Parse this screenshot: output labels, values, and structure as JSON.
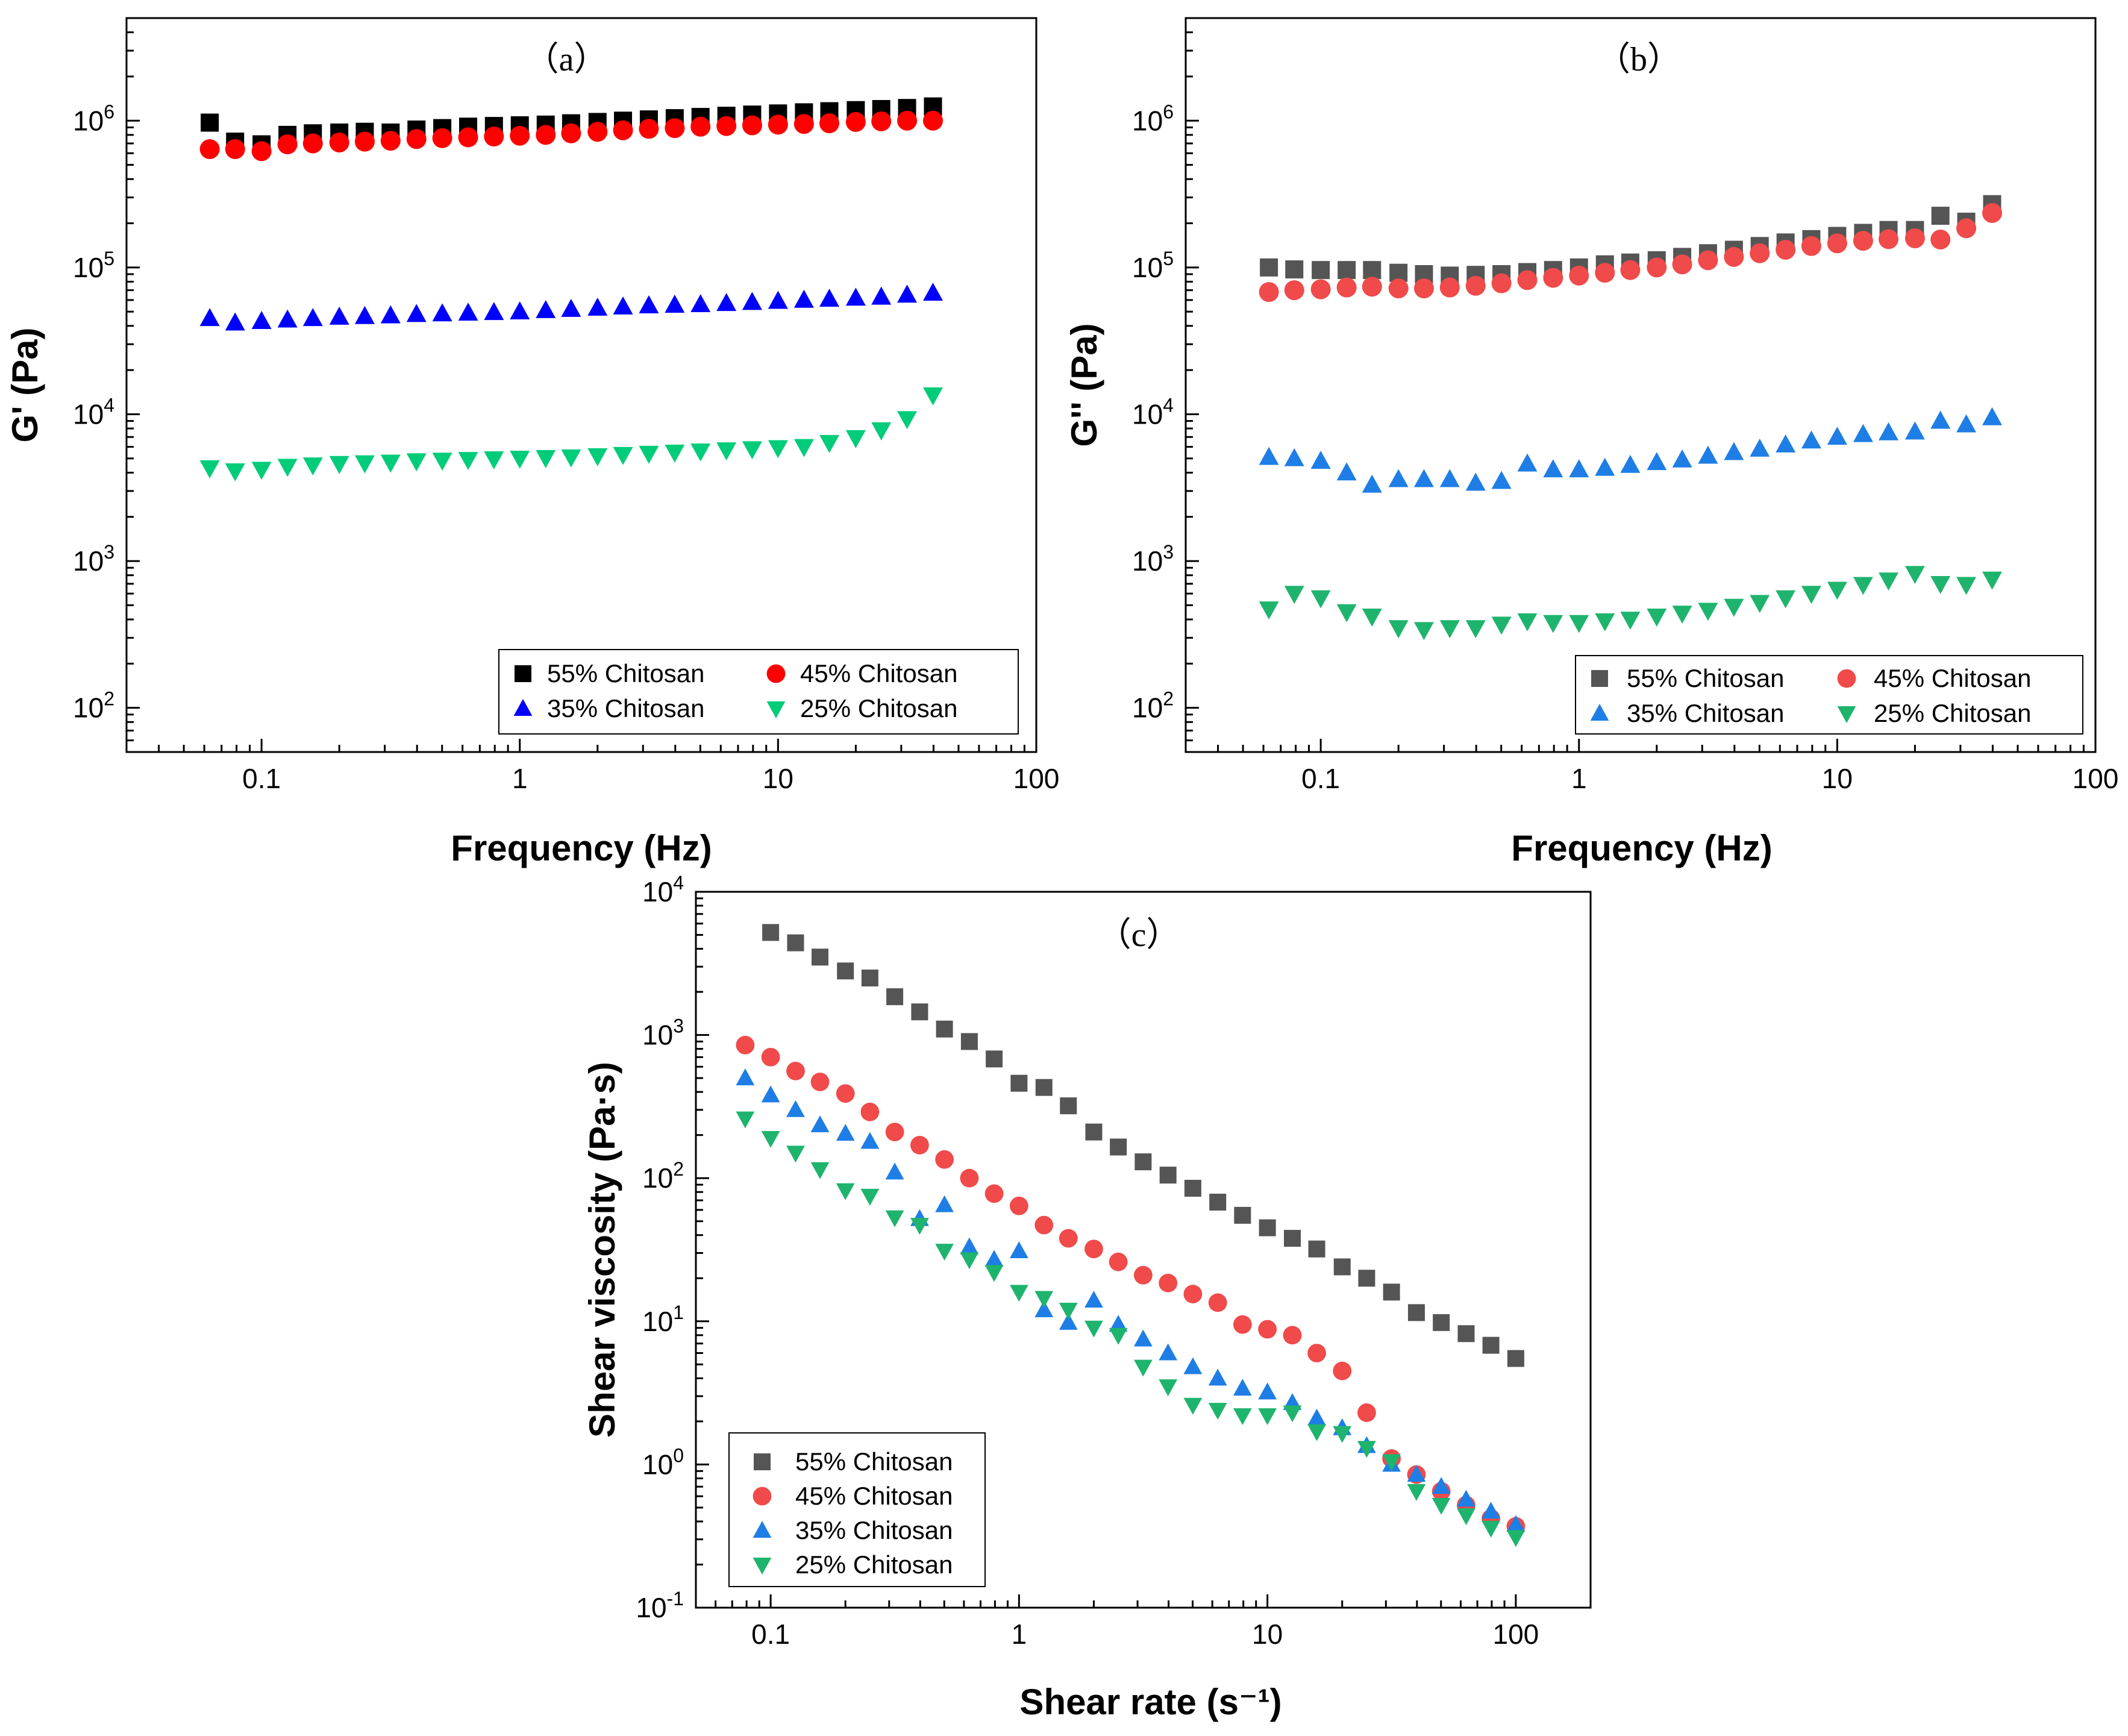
{
  "colors": {
    "s55_a": "#000000",
    "s45_a": "#ff0000",
    "s35_a": "#0000ff",
    "s25_a": "#00cc7a",
    "s55": "#555555",
    "s45": "#f04a4a",
    "s35": "#1e7ee6",
    "s25": "#1fb46e"
  },
  "chart_data": [
    {
      "id": "a",
      "type": "scatter",
      "title": "（a）",
      "xlabel": "Frequency (Hz)",
      "ylabel": "G' (Pa)",
      "xscale": "log",
      "yscale": "log",
      "xlim": [
        0.03,
        100
      ],
      "ylim": [
        50,
        5000000
      ],
      "xticks": [
        {
          "v": 0.1,
          "label": "0.1"
        },
        {
          "v": 1,
          "label": "1"
        },
        {
          "v": 10,
          "label": "10"
        },
        {
          "v": 100,
          "label": "100"
        }
      ],
      "yticks": [
        {
          "v": 100,
          "base": "10",
          "exp": "2"
        },
        {
          "v": 1000,
          "base": "10",
          "exp": "3"
        },
        {
          "v": 10000,
          "base": "10",
          "exp": "4"
        },
        {
          "v": 100000,
          "base": "10",
          "exp": "5"
        },
        {
          "v": 1000000,
          "base": "10",
          "exp": "6"
        }
      ],
      "legend": {
        "position": "bottom-right",
        "columns": 2
      },
      "x": [
        0.063,
        0.079,
        0.1,
        0.126,
        0.158,
        0.2,
        0.251,
        0.316,
        0.398,
        0.501,
        0.631,
        0.794,
        1,
        1.26,
        1.58,
        2,
        2.51,
        3.16,
        3.98,
        5.01,
        6.31,
        7.94,
        10,
        12.6,
        15.8,
        20,
        25.1,
        31.6,
        39.8
      ],
      "series": [
        {
          "name": "55% Chitosan",
          "marker": "square",
          "color_key": "s55_a",
          "values": [
            970000,
            720000,
            690000,
            800000,
            820000,
            830000,
            840000,
            830000,
            870000,
            890000,
            910000,
            920000,
            930000,
            940000,
            960000,
            980000,
            1000000,
            1020000,
            1040000,
            1060000,
            1080000,
            1100000,
            1120000,
            1140000,
            1160000,
            1180000,
            1200000,
            1220000,
            1250000
          ]
        },
        {
          "name": "45% Chitosan",
          "marker": "circle",
          "color_key": "s45_a",
          "values": [
            640000,
            640000,
            620000,
            690000,
            700000,
            710000,
            720000,
            730000,
            750000,
            760000,
            770000,
            780000,
            790000,
            800000,
            820000,
            840000,
            860000,
            880000,
            890000,
            910000,
            920000,
            930000,
            940000,
            950000,
            960000,
            980000,
            990000,
            1000000,
            1000000
          ]
        },
        {
          "name": "35% Chitosan",
          "marker": "triangle-up",
          "color_key": "s35_a",
          "values": [
            45000,
            42000,
            43000,
            44000,
            45000,
            46000,
            46500,
            47000,
            48000,
            48500,
            49000,
            49500,
            50000,
            51000,
            52000,
            53000,
            54000,
            55000,
            55500,
            56000,
            57000,
            58000,
            59000,
            60000,
            61000,
            62000,
            63000,
            65000,
            67000
          ]
        },
        {
          "name": "25% Chitosan",
          "marker": "triangle-down",
          "color_key": "s25_a",
          "values": [
            4300,
            4100,
            4200,
            4400,
            4500,
            4600,
            4650,
            4700,
            4800,
            4850,
            4900,
            4950,
            5000,
            5050,
            5100,
            5200,
            5300,
            5400,
            5500,
            5600,
            5700,
            5800,
            5900,
            6000,
            6400,
            6900,
            7800,
            9300,
            13500
          ]
        }
      ]
    },
    {
      "id": "b",
      "type": "scatter",
      "title": "（b）",
      "xlabel": "Frequency (Hz)",
      "ylabel": "G'' (Pa)",
      "xscale": "log",
      "yscale": "log",
      "xlim": [
        0.03,
        100
      ],
      "ylim": [
        50,
        5000000
      ],
      "xticks": [
        {
          "v": 0.1,
          "label": "0.1"
        },
        {
          "v": 1,
          "label": "1"
        },
        {
          "v": 10,
          "label": "10"
        },
        {
          "v": 100,
          "label": "100"
        }
      ],
      "yticks": [
        {
          "v": 100,
          "base": "10",
          "exp": "2"
        },
        {
          "v": 1000,
          "base": "10",
          "exp": "3"
        },
        {
          "v": 10000,
          "base": "10",
          "exp": "4"
        },
        {
          "v": 100000,
          "base": "10",
          "exp": "5"
        },
        {
          "v": 1000000,
          "base": "10",
          "exp": "6"
        }
      ],
      "legend": {
        "position": "bottom-right",
        "columns": 2
      },
      "x": [
        0.063,
        0.079,
        0.1,
        0.126,
        0.158,
        0.2,
        0.251,
        0.316,
        0.398,
        0.501,
        0.631,
        0.794,
        1,
        1.26,
        1.58,
        2,
        2.51,
        3.16,
        3.98,
        5.01,
        6.31,
        7.94,
        10,
        12.6,
        15.8,
        20,
        25.1,
        31.6,
        39.8
      ],
      "series": [
        {
          "name": "55% Chitosan",
          "marker": "square",
          "color_key": "s55",
          "values": [
            100000,
            97000,
            96000,
            96000,
            96000,
            92000,
            90000,
            88000,
            89000,
            90000,
            93000,
            96000,
            100000,
            105000,
            108000,
            112000,
            118000,
            125000,
            132000,
            140000,
            148000,
            156000,
            164000,
            172000,
            180000,
            180000,
            225000,
            205000,
            270000
          ]
        },
        {
          "name": "45% Chitosan",
          "marker": "circle",
          "color_key": "s45",
          "values": [
            68000,
            70000,
            71000,
            73000,
            74000,
            72000,
            72000,
            73000,
            75000,
            78000,
            82000,
            85000,
            88000,
            92000,
            96000,
            100000,
            105000,
            112000,
            118000,
            125000,
            132000,
            140000,
            146000,
            152000,
            156000,
            158000,
            155000,
            185000,
            235000
          ]
        },
        {
          "name": "35% Chitosan",
          "marker": "triangle-up",
          "color_key": "s35",
          "values": [
            5100,
            5000,
            4800,
            4000,
            3300,
            3600,
            3600,
            3600,
            3400,
            3500,
            4600,
            4200,
            4200,
            4300,
            4500,
            4700,
            4900,
            5200,
            5500,
            5800,
            6200,
            6600,
            7000,
            7300,
            7500,
            7600,
            9000,
            8500,
            9500
          ]
        },
        {
          "name": "25% Chitosan",
          "marker": "triangle-down",
          "color_key": "s25",
          "values": [
            470,
            600,
            560,
            450,
            420,
            350,
            340,
            350,
            350,
            370,
            390,
            380,
            380,
            390,
            400,
            420,
            440,
            460,
            490,
            520,
            560,
            600,
            640,
            690,
            740,
            820,
            700,
            690,
            750
          ]
        }
      ]
    },
    {
      "id": "c",
      "type": "scatter",
      "title": "（c）",
      "xlabel": "Shear rate (s⁻¹)",
      "ylabel": "Shear viscosity (Pa·s)",
      "xscale": "log",
      "yscale": "log",
      "xlim": [
        0.05,
        200
      ],
      "ylim": [
        0.1,
        10000
      ],
      "xticks": [
        {
          "v": 0.1,
          "label": "0.1"
        },
        {
          "v": 1,
          "label": "1"
        },
        {
          "v": 10,
          "label": "10"
        },
        {
          "v": 100,
          "label": "100"
        }
      ],
      "yticks": [
        {
          "v": 0.1,
          "base": "10",
          "exp": "-1"
        },
        {
          "v": 1,
          "base": "10",
          "exp": "0"
        },
        {
          "v": 10,
          "base": "10",
          "exp": "1"
        },
        {
          "v": 100,
          "base": "10",
          "exp": "2"
        },
        {
          "v": 1000,
          "base": "10",
          "exp": "3"
        },
        {
          "v": 10000,
          "base": "10",
          "exp": "4"
        }
      ],
      "legend": {
        "position": "bottom-left",
        "columns": 1
      },
      "series": [
        {
          "name": "55% Chitosan",
          "marker": "square",
          "color_key": "s55",
          "x": [
            0.1,
            0.126,
            0.158,
            0.2,
            0.251,
            0.316,
            0.398,
            0.501,
            0.631,
            0.794,
            1,
            1.26,
            1.58,
            2,
            2.51,
            3.16,
            3.98,
            5.01,
            6.31,
            7.94,
            10,
            12.6,
            15.8,
            20,
            25.1,
            31.6,
            39.8,
            50.1,
            63.1,
            79.4,
            100
          ],
          "values": [
            5200,
            4400,
            3500,
            2800,
            2500,
            1850,
            1450,
            1100,
            900,
            680,
            460,
            430,
            320,
            210,
            165,
            130,
            105,
            85,
            68,
            55,
            45,
            38,
            32,
            24,
            20,
            16,
            11.5,
            9.8,
            8.2,
            6.8,
            5.5
          ]
        },
        {
          "name": "45% Chitosan",
          "marker": "circle",
          "color_key": "s45",
          "x": [
            0.079,
            0.1,
            0.126,
            0.158,
            0.2,
            0.251,
            0.316,
            0.398,
            0.501,
            0.631,
            0.794,
            1,
            1.26,
            1.58,
            2,
            2.51,
            3.16,
            3.98,
            5.01,
            6.31,
            7.94,
            10,
            12.6,
            15.8,
            20,
            25.1,
            31.6,
            39.8,
            50.1,
            63.1,
            79.4,
            100
          ],
          "values": [
            850,
            700,
            560,
            470,
            390,
            290,
            210,
            170,
            135,
            100,
            78,
            64,
            47,
            38,
            32,
            26,
            21,
            18.5,
            15.5,
            13.5,
            9.5,
            8.8,
            8,
            6,
            4.5,
            2.3,
            1.1,
            0.85,
            0.65,
            0.52,
            0.42,
            0.37
          ]
        },
        {
          "name": "35% Chitosan",
          "marker": "triangle-up",
          "color_key": "s35",
          "x": [
            0.079,
            0.1,
            0.126,
            0.158,
            0.2,
            0.251,
            0.316,
            0.398,
            0.501,
            0.631,
            0.794,
            1,
            1.26,
            1.58,
            2,
            2.51,
            3.16,
            3.98,
            5.01,
            6.31,
            7.94,
            10,
            12.6,
            15.8,
            20,
            25.1,
            31.6,
            39.8,
            50.1,
            63.1,
            79.4,
            100
          ],
          "values": [
            500,
            380,
            300,
            235,
            205,
            180,
            110,
            52,
            65,
            33,
            27,
            31,
            12,
            9.8,
            14,
            9.5,
            7.5,
            6,
            4.8,
            4,
            3.4,
            3.2,
            2.7,
            2.1,
            1.8,
            1.35,
            1,
            0.85,
            0.7,
            0.57,
            0.47,
            0.38
          ]
        },
        {
          "name": "25% Chitosan",
          "marker": "triangle-down",
          "color_key": "s25",
          "x": [
            0.079,
            0.1,
            0.126,
            0.158,
            0.2,
            0.251,
            0.316,
            0.398,
            0.501,
            0.631,
            0.794,
            1,
            1.26,
            1.58,
            2,
            2.51,
            3.16,
            3.98,
            5.01,
            6.31,
            7.94,
            10,
            12.6,
            15.8,
            20,
            25.1,
            31.6,
            39.8,
            50.1,
            63.1,
            79.4,
            100
          ],
          "values": [
            260,
            190,
            150,
            115,
            82,
            75,
            53,
            47,
            31,
            27,
            22,
            16,
            14.5,
            12,
            9,
            8,
            4.8,
            3.5,
            2.6,
            2.4,
            2.2,
            2.2,
            2.3,
            1.7,
            1.65,
            1.3,
            1.05,
            0.65,
            0.52,
            0.44,
            0.36,
            0.31
          ]
        }
      ]
    }
  ]
}
